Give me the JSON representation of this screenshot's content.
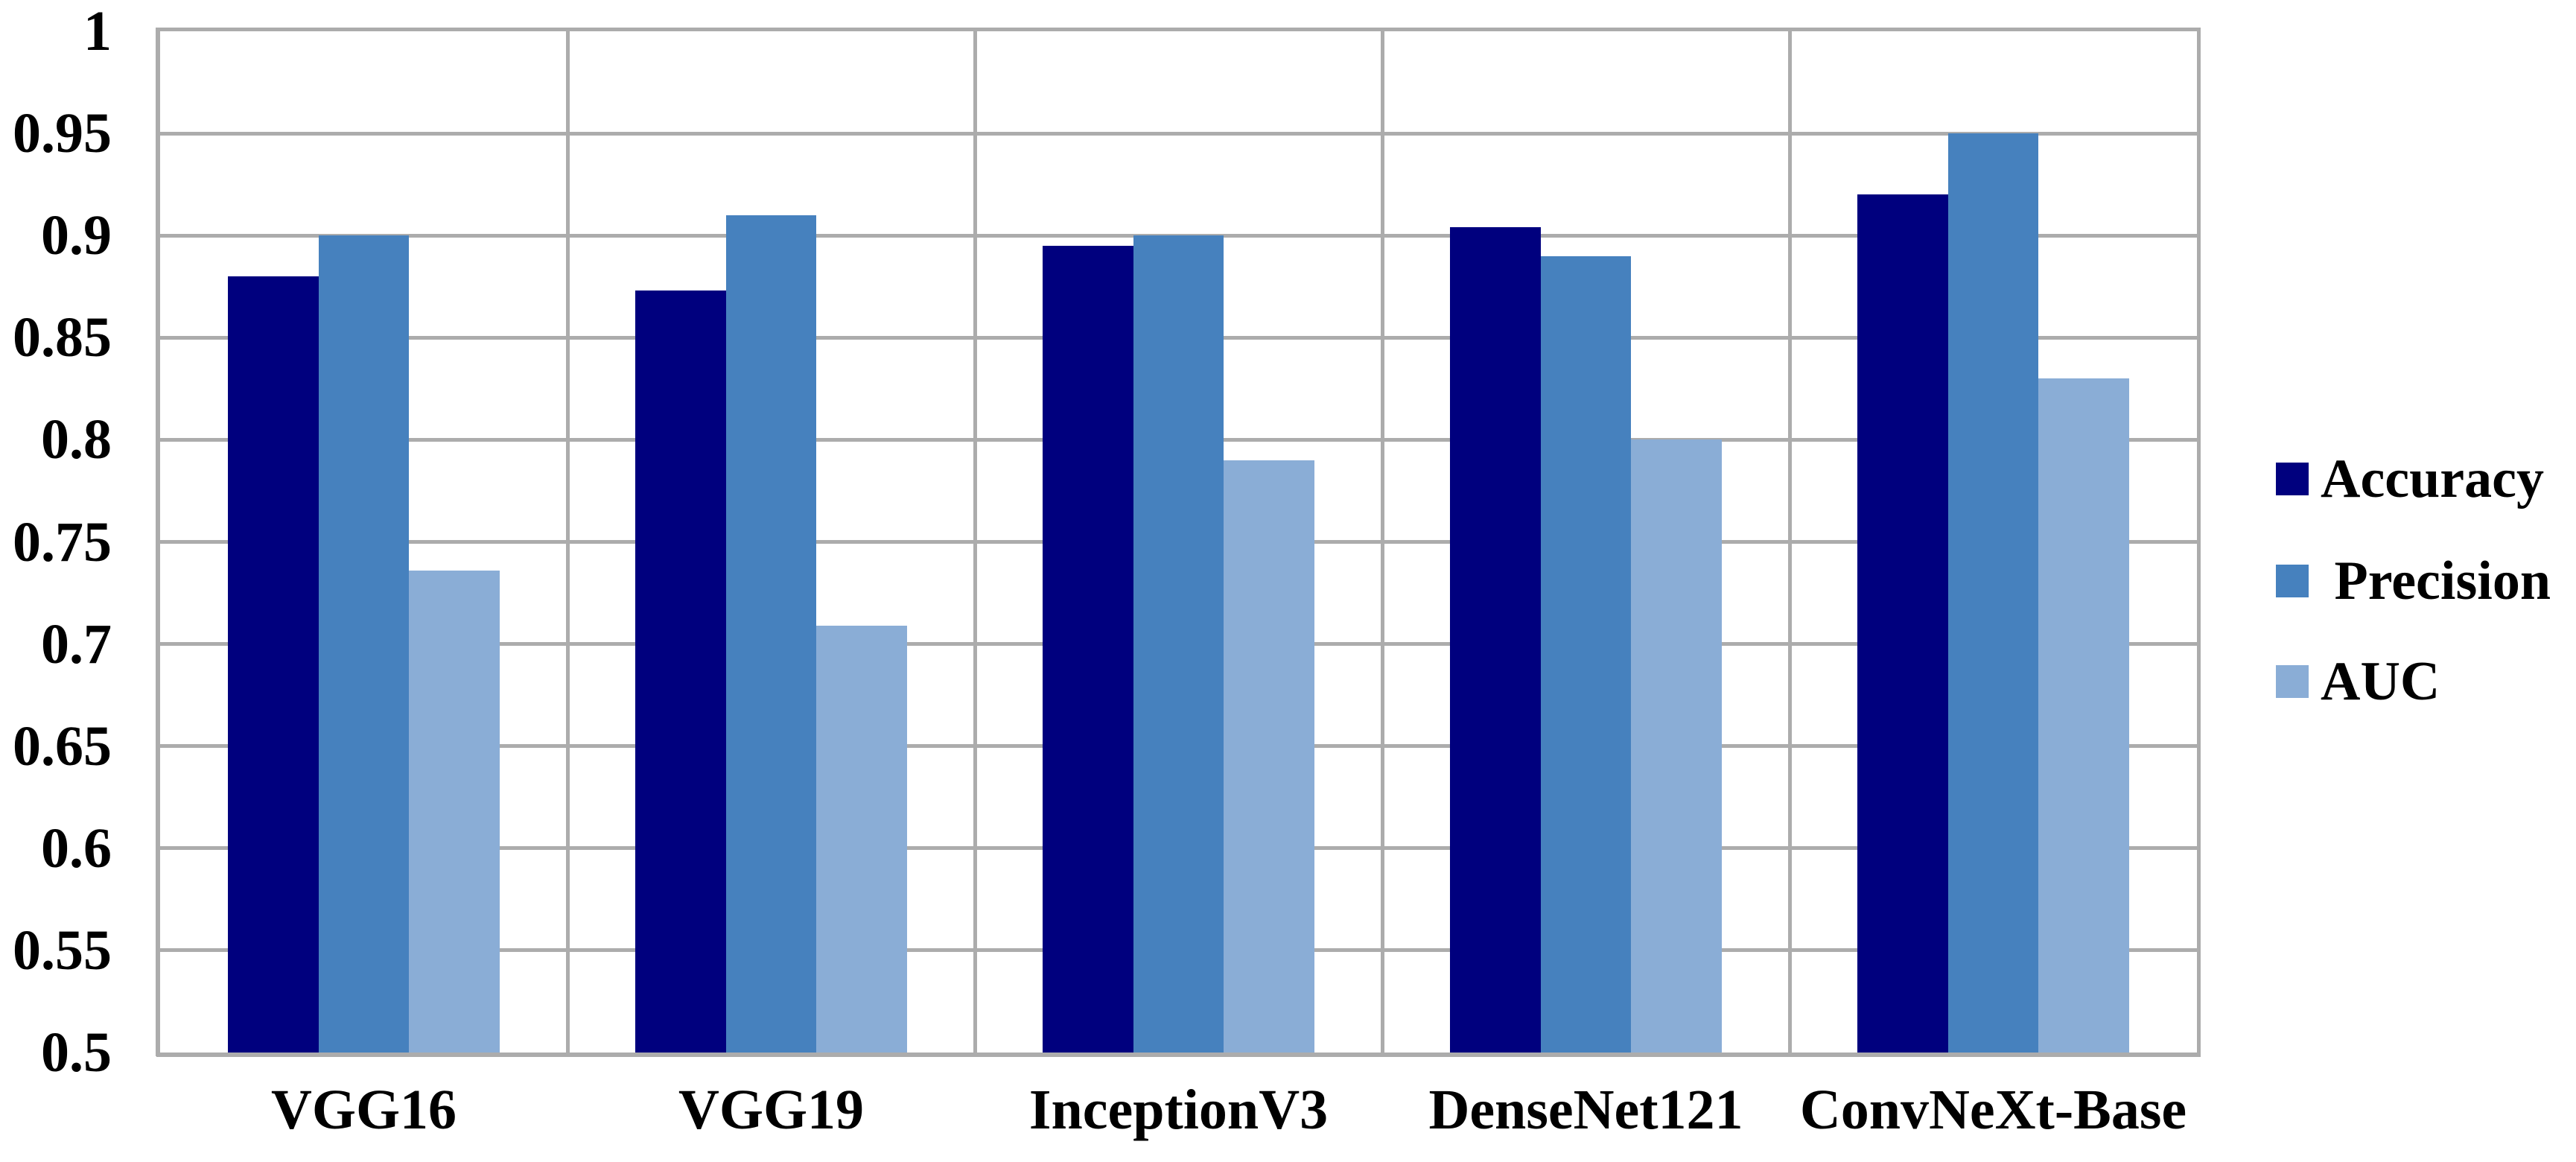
{
  "chart_data": {
    "type": "bar",
    "title": "",
    "xlabel": "",
    "ylabel": "",
    "categories": [
      "VGG16",
      "VGG19",
      "InceptionV3",
      "DenseNet121",
      "ConvNeXt-Base"
    ],
    "series": [
      {
        "name": "Accuracy",
        "color": "#00007E",
        "values": [
          0.88,
          0.873,
          0.895,
          0.904,
          0.92
        ]
      },
      {
        "name": "Precision",
        "color": "#4681BE",
        "values": [
          0.9,
          0.91,
          0.9,
          0.89,
          0.95
        ]
      },
      {
        "name": "AUC",
        "color": "#8AADD6",
        "values": [
          0.736,
          0.709,
          0.79,
          0.8,
          0.83
        ]
      }
    ],
    "legend_labels": [
      "Accuracy",
      " Precision",
      "AUC"
    ],
    "legend_position": "right",
    "ylim": [
      0.5,
      1.0
    ],
    "ytick_step": 0.05,
    "yticks": [
      "1",
      "0.95",
      "0.9",
      "0.85",
      "0.8",
      "0.75",
      "0.7",
      "0.65",
      "0.6",
      "0.55",
      "0.5"
    ],
    "grid": true
  },
  "colors": {
    "background": "#FFFFFF",
    "gridline": "#ACACAC",
    "axis": "#ACACAC",
    "text": "#000000"
  }
}
